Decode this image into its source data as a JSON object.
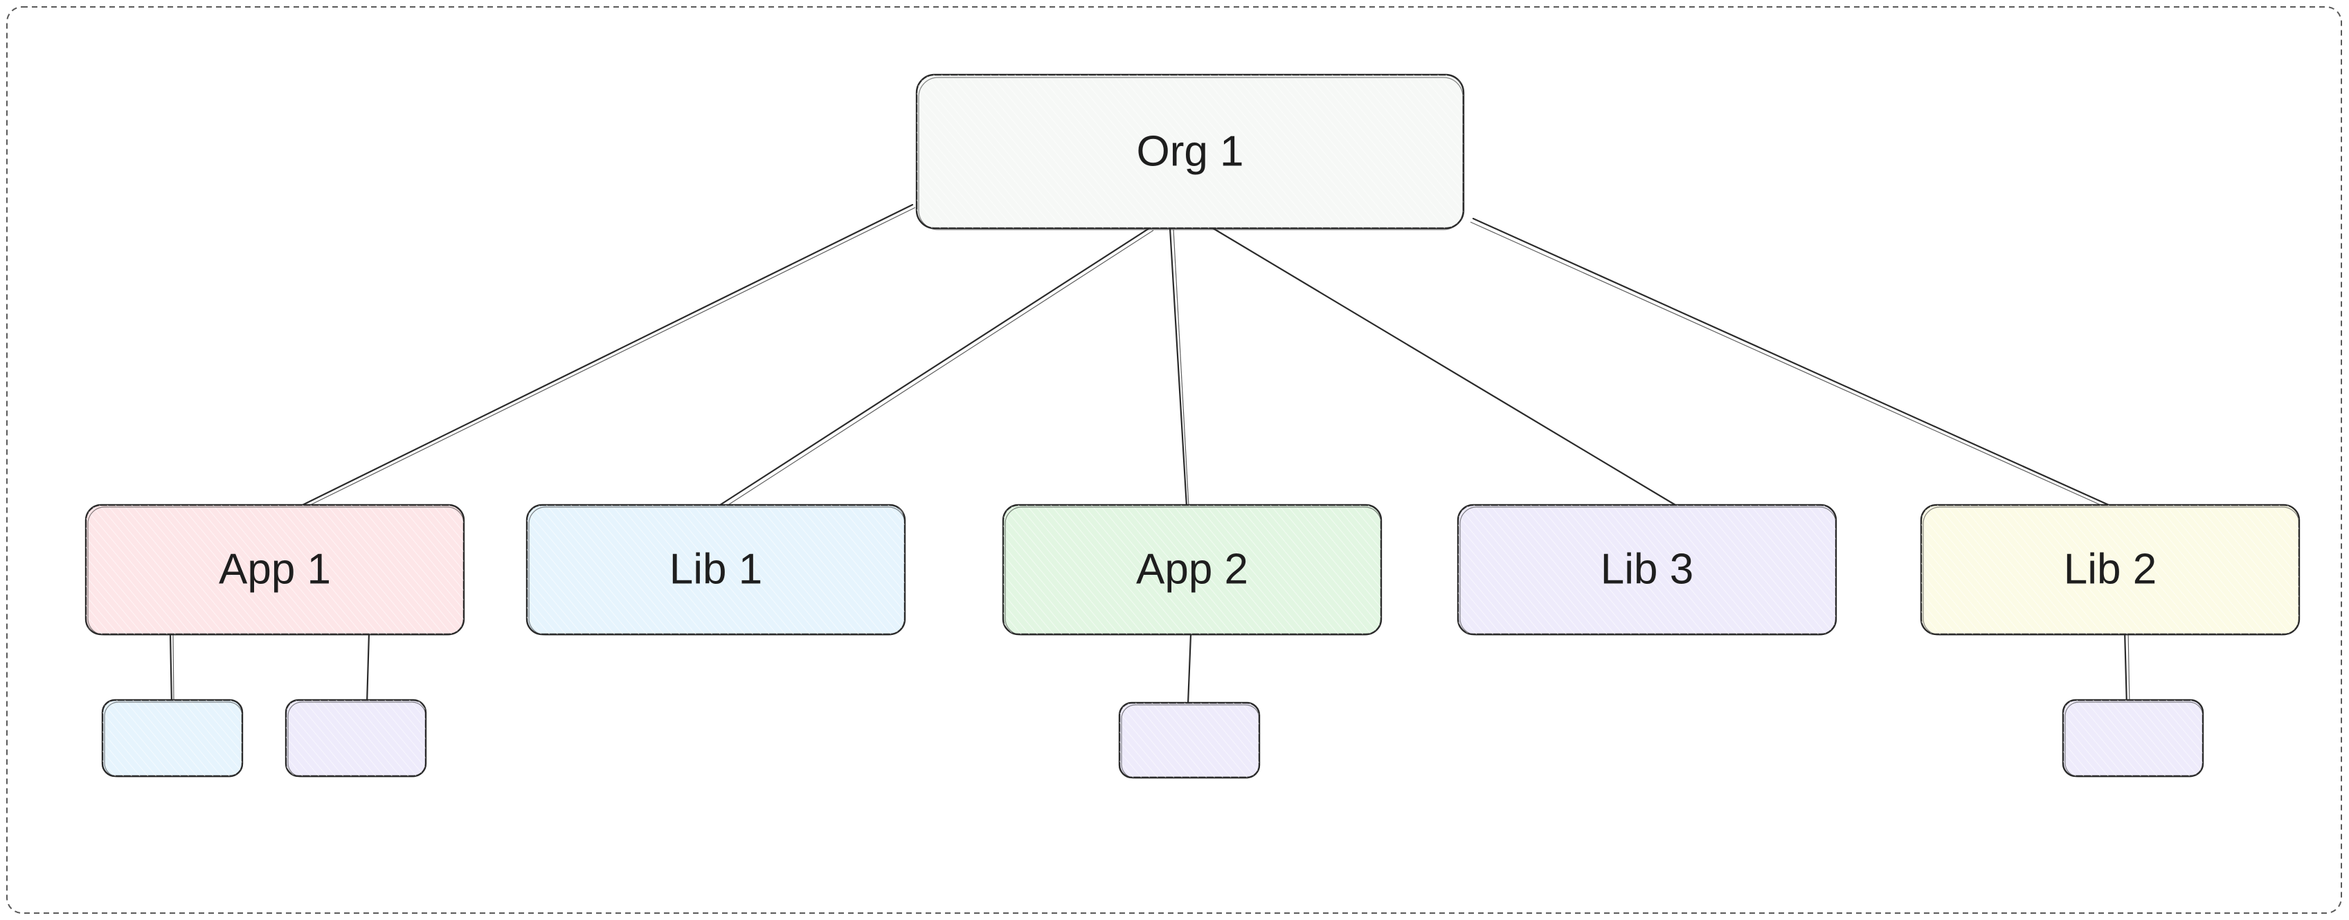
{
  "colors": {
    "stroke": "#2a2a2a",
    "org_fill": "#f6f8f6",
    "app1_fill": "#fde6e8",
    "lib1_fill": "#e6f4fd",
    "app2_fill": "#e2f6e2",
    "lib3_fill": "#eeebfb",
    "lib2_fill": "#fcfbe6",
    "child_blue_fill": "#e6f4fd",
    "child_purple_fill": "#eeebfb"
  },
  "nodes": {
    "org": {
      "label": "Org 1"
    },
    "app1": {
      "label": "App 1"
    },
    "lib1": {
      "label": "Lib 1"
    },
    "app2": {
      "label": "App 2"
    },
    "lib3": {
      "label": "Lib 3"
    },
    "lib2": {
      "label": "Lib 2"
    }
  }
}
